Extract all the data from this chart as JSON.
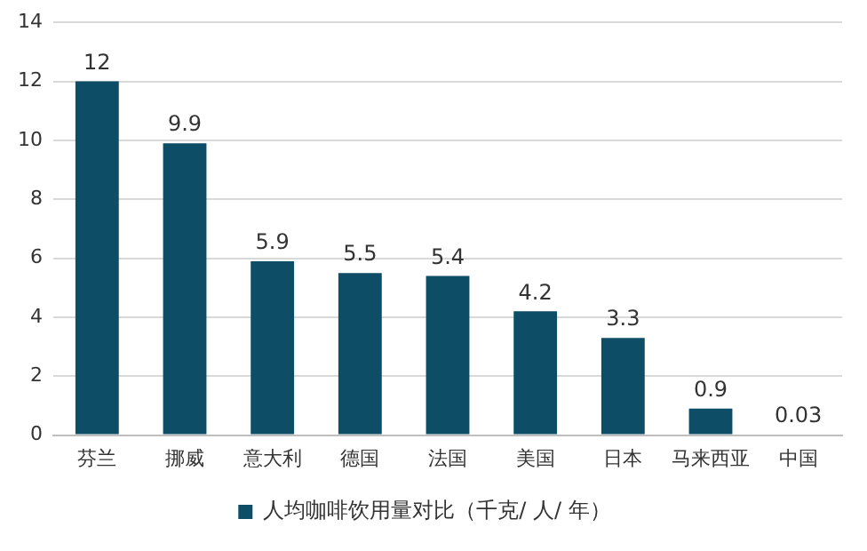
{
  "chart_data": {
    "type": "bar",
    "categories": [
      "芬兰",
      "挪威",
      "意大利",
      "德国",
      "法国",
      "美国",
      "日本",
      "马来西亚",
      "中国"
    ],
    "series": [
      {
        "name": "人均咖啡饮用量对比（千克/ 人/ 年）",
        "color": "#0e4d66",
        "values": [
          12,
          9.9,
          5.9,
          5.5,
          5.4,
          4.2,
          3.3,
          0.9,
          0.03
        ]
      }
    ],
    "ylim": [
      0,
      14
    ],
    "yticks": [
      0,
      2,
      4,
      6,
      8,
      10,
      12,
      14
    ],
    "grid": "y",
    "legend": "bottom",
    "data_labels": true
  }
}
